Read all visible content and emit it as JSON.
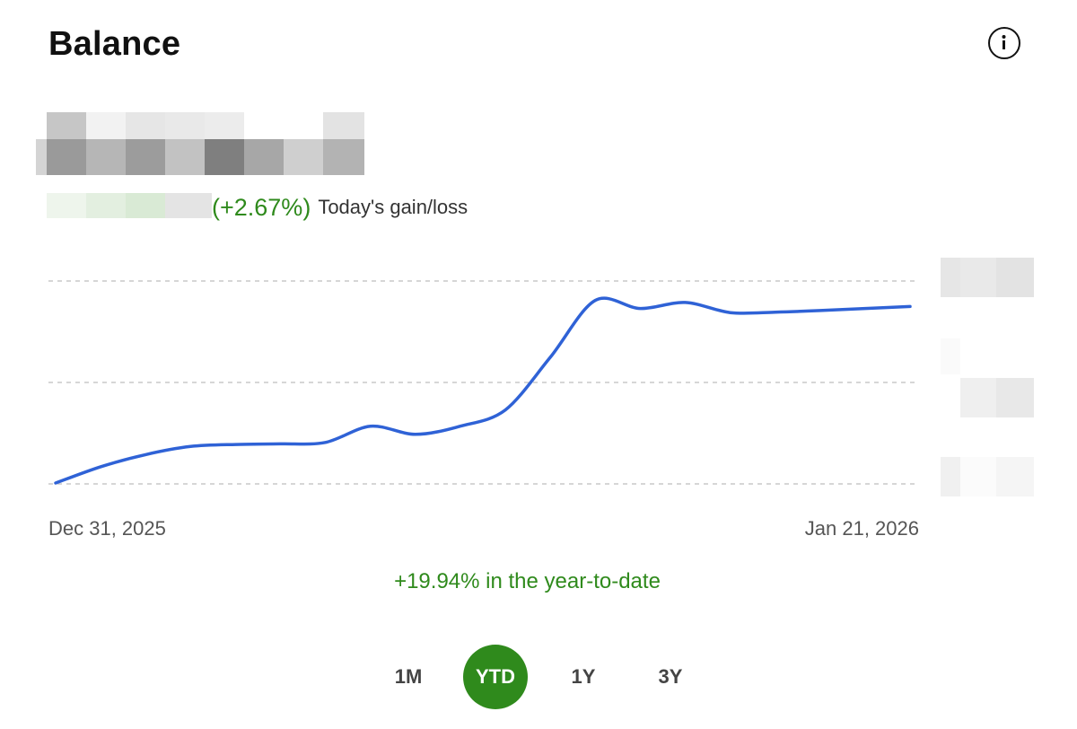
{
  "header": {
    "title": "Balance",
    "info_icon": "info-circle-icon"
  },
  "today": {
    "percent": "(+2.67%)",
    "label": "Today's gain/loss"
  },
  "chart_data": {
    "type": "line",
    "x_start_label": "Dec 31, 2025",
    "x_end_label": "Jan 21, 2026",
    "y_axis_labels_redacted": true,
    "grid": "horizontal dashed",
    "series": [
      {
        "color": "#2f62d6",
        "values": [
          0,
          8,
          14,
          18,
          19,
          19.3,
          20,
          28,
          24,
          28,
          36,
          62,
          90,
          86,
          89,
          84,
          84.2,
          85,
          86,
          87
        ]
      }
    ]
  },
  "summary": {
    "ytd_text": "+19.94% in the year-to-date"
  },
  "ranges": [
    {
      "label": "1M",
      "active": false
    },
    {
      "label": "YTD",
      "active": true
    },
    {
      "label": "1Y",
      "active": false
    },
    {
      "label": "3Y",
      "active": false
    }
  ],
  "colors": {
    "positive": "#2f8a1c",
    "line": "#2f62d6",
    "grid": "#c8c8c8"
  }
}
